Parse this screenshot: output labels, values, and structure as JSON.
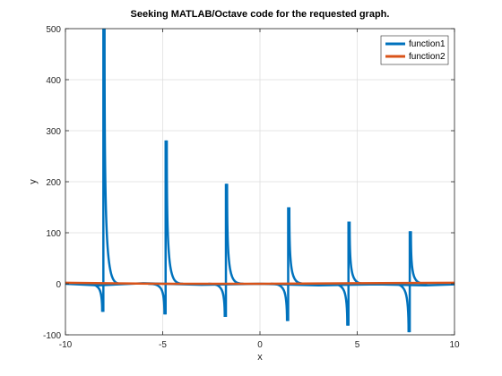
{
  "chart_data": {
    "type": "line",
    "title": "Seeking MATLAB/Octave code for the requested graph.",
    "xlabel": "x",
    "ylabel": "y",
    "xlim": [
      -10,
      10
    ],
    "ylim": [
      -100,
      500
    ],
    "xticks": [
      -10,
      -5,
      0,
      5,
      10
    ],
    "yticks": [
      -100,
      0,
      100,
      200,
      300,
      400,
      500
    ],
    "grid": true,
    "legend_position": "top-right",
    "series": [
      {
        "name": "function1",
        "color": "#0072BD",
        "spikes": [
          {
            "x": -8.05,
            "top": 500,
            "bottom": -55
          },
          {
            "x": -4.85,
            "top": 281,
            "bottom": -60
          },
          {
            "x": -1.75,
            "top": 196,
            "bottom": -65
          },
          {
            "x": 1.45,
            "top": 150,
            "bottom": -73
          },
          {
            "x": 4.55,
            "top": 122,
            "bottom": -82
          },
          {
            "x": 7.7,
            "top": 103,
            "bottom": -95
          }
        ],
        "baseline": [
          [
            -10,
            0
          ],
          [
            -8.3,
            -3
          ],
          [
            -6,
            1
          ],
          [
            -3,
            -2
          ],
          [
            0,
            0
          ],
          [
            3,
            -3
          ],
          [
            6,
            -1
          ],
          [
            8.5,
            -3
          ],
          [
            10,
            -1
          ]
        ]
      },
      {
        "name": "function2",
        "color": "#D95319",
        "values": [
          [
            -10,
            2
          ],
          [
            -5,
            0
          ],
          [
            0,
            0
          ],
          [
            5,
            1
          ],
          [
            10,
            2
          ]
        ]
      }
    ]
  }
}
